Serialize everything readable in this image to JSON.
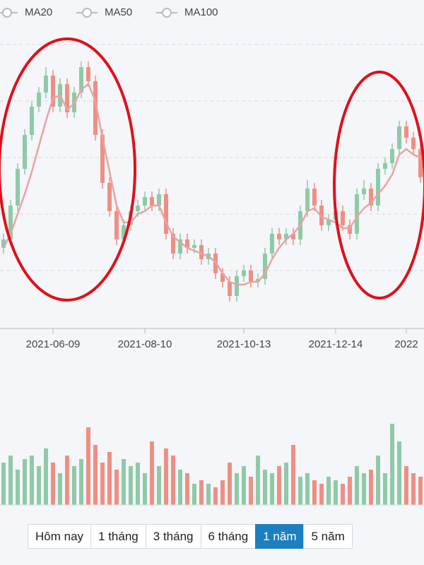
{
  "chart_data": {
    "type": "candlestick",
    "legend": [
      "MA20",
      "MA50",
      "MA100"
    ],
    "categories": [
      null,
      null,
      null,
      null,
      null,
      null,
      null,
      "2021-06-09",
      null,
      null,
      null,
      null,
      null,
      null,
      null,
      null,
      null,
      null,
      null,
      null,
      "2021-08-10",
      null,
      null,
      null,
      null,
      null,
      null,
      null,
      null,
      null,
      null,
      null,
      null,
      null,
      "2021-10-13",
      null,
      null,
      null,
      null,
      null,
      null,
      null,
      null,
      null,
      null,
      null,
      null,
      "2021-12-14",
      null,
      null,
      null,
      null,
      null,
      null,
      null,
      null,
      null,
      "2022",
      null,
      null
    ],
    "open": [
      28,
      31,
      43,
      56,
      68,
      78,
      83,
      89,
      78,
      86,
      76,
      83,
      92,
      87,
      68,
      51,
      41,
      31,
      36,
      41,
      43,
      46,
      43,
      47,
      33,
      26,
      31,
      28,
      29,
      24,
      26,
      19,
      16,
      11,
      18,
      20,
      16,
      17,
      26,
      33,
      31,
      33,
      31,
      41,
      49,
      43,
      36,
      38,
      41,
      36,
      33,
      47,
      49,
      43,
      56,
      58,
      63,
      71,
      67,
      63
    ],
    "high": [
      33,
      45,
      58,
      70,
      80,
      85,
      92,
      91,
      88,
      88,
      85,
      94,
      94,
      89,
      70,
      53,
      43,
      38,
      43,
      45,
      48,
      48,
      49,
      49,
      35,
      33,
      33,
      31,
      31,
      28,
      28,
      21,
      18,
      20,
      22,
      22,
      19,
      28,
      35,
      35,
      35,
      35,
      43,
      52,
      51,
      45,
      40,
      43,
      43,
      38,
      49,
      52,
      51,
      58,
      60,
      65,
      73,
      73,
      69,
      65
    ],
    "low": [
      26,
      29,
      41,
      54,
      66,
      76,
      81,
      76,
      76,
      74,
      74,
      81,
      85,
      66,
      49,
      39,
      29,
      29,
      34,
      39,
      41,
      41,
      41,
      31,
      24,
      24,
      26,
      26,
      22,
      22,
      17,
      14,
      9,
      9,
      16,
      14,
      14,
      15,
      24,
      29,
      29,
      29,
      29,
      39,
      41,
      34,
      34,
      36,
      34,
      31,
      31,
      45,
      41,
      41,
      54,
      56,
      61,
      65,
      61,
      51
    ],
    "close": [
      31,
      43,
      56,
      68,
      78,
      83,
      89,
      78,
      86,
      76,
      83,
      92,
      87,
      68,
      51,
      41,
      31,
      36,
      41,
      43,
      46,
      43,
      47,
      33,
      26,
      31,
      28,
      29,
      24,
      26,
      19,
      16,
      11,
      18,
      20,
      16,
      17,
      26,
      33,
      31,
      33,
      31,
      41,
      49,
      43,
      36,
      38,
      41,
      36,
      33,
      47,
      49,
      43,
      56,
      58,
      63,
      71,
      67,
      63,
      53
    ],
    "ma20": {
      "color": "#e9a3a3",
      "values": [
        28,
        33,
        40,
        47,
        55,
        64,
        73,
        81,
        82,
        77,
        79,
        84,
        86,
        80,
        67,
        55,
        43,
        37,
        37,
        40,
        41,
        43,
        43,
        37,
        32,
        30,
        28,
        27,
        26,
        25,
        23,
        19,
        16,
        15,
        15,
        16,
        16,
        19,
        24,
        28,
        31,
        33,
        36,
        41,
        42,
        39,
        38,
        37,
        35,
        35,
        39,
        42,
        44,
        47,
        50,
        54,
        61,
        63,
        61,
        60
      ]
    },
    "volume": [
      60,
      70,
      50,
      65,
      70,
      55,
      80,
      60,
      45,
      70,
      55,
      65,
      110,
      85,
      60,
      75,
      50,
      65,
      55,
      60,
      45,
      90,
      55,
      80,
      70,
      50,
      45,
      30,
      35,
      30,
      25,
      35,
      60,
      45,
      55,
      40,
      70,
      50,
      45,
      55,
      60,
      85,
      40,
      45,
      35,
      30,
      40,
      35,
      30,
      40,
      55,
      45,
      50,
      70,
      45,
      115,
      90,
      55,
      45,
      40
    ],
    "up_color": "#8fcaa8",
    "down_color": "#ef8f84",
    "ylim": [
      0,
      105
    ],
    "yticks": [
      20,
      40,
      60,
      80,
      100
    ],
    "grid": true,
    "volume_ylim": [
      0,
      140
    ]
  },
  "controls": {
    "buttons": [
      "Hôm nay",
      "1 tháng",
      "3 tháng",
      "6 tháng",
      "1 năm",
      "5 năm"
    ],
    "active": 4
  }
}
